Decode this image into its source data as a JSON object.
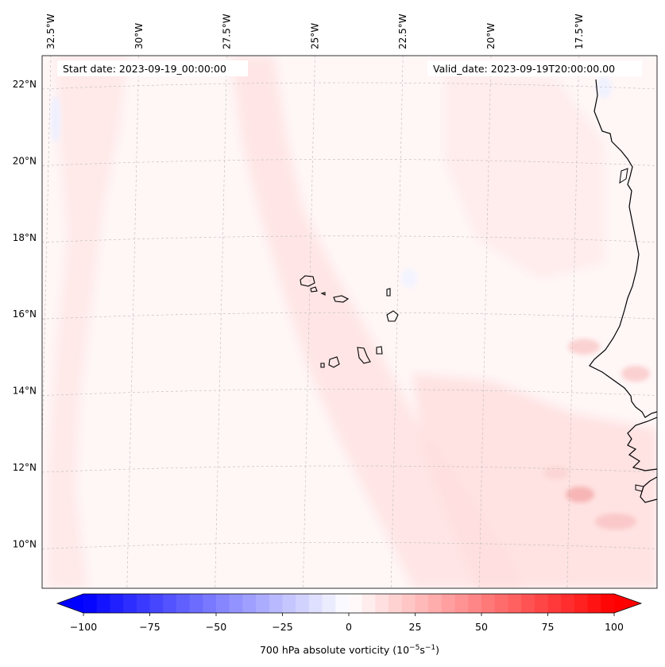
{
  "map": {
    "start_date_label": "Start date: 2023-09-19_00:00:00",
    "valid_date_label": "Valid_date: 2023-09-19T20:00:00.00",
    "lon_labels": [
      "32.5°W",
      "30°W",
      "27.5°W",
      "25°W",
      "22.5°W",
      "20°W",
      "17.5°W"
    ],
    "lat_labels": [
      "22°N",
      "20°N",
      "18°N",
      "16°N",
      "14°N",
      "12°N",
      "10°N"
    ],
    "lon_values": [
      -32.5,
      -30,
      -27.5,
      -25,
      -22.5,
      -20,
      -17.5
    ],
    "lat_values": [
      22,
      20,
      18,
      16,
      14,
      12,
      10
    ],
    "coastline_color": "#000000",
    "gridline_color": "#bbbbbb"
  },
  "colorbar": {
    "label": "700 hPa absolute vorticity (10",
    "label_exp1": "−5",
    "label_mid": "s",
    "label_exp2": "−1",
    "label_end": ")",
    "tick_labels": [
      "−100",
      "−75",
      "−50",
      "−25",
      "0",
      "25",
      "50",
      "75",
      "100"
    ],
    "tick_values": [
      -100,
      -75,
      -50,
      -25,
      0,
      25,
      50,
      75,
      100
    ],
    "range": [
      -100,
      100
    ],
    "low_color": "#0000ff",
    "mid_color": "#ffffff",
    "high_color": "#ff0000",
    "extend": "both"
  }
}
